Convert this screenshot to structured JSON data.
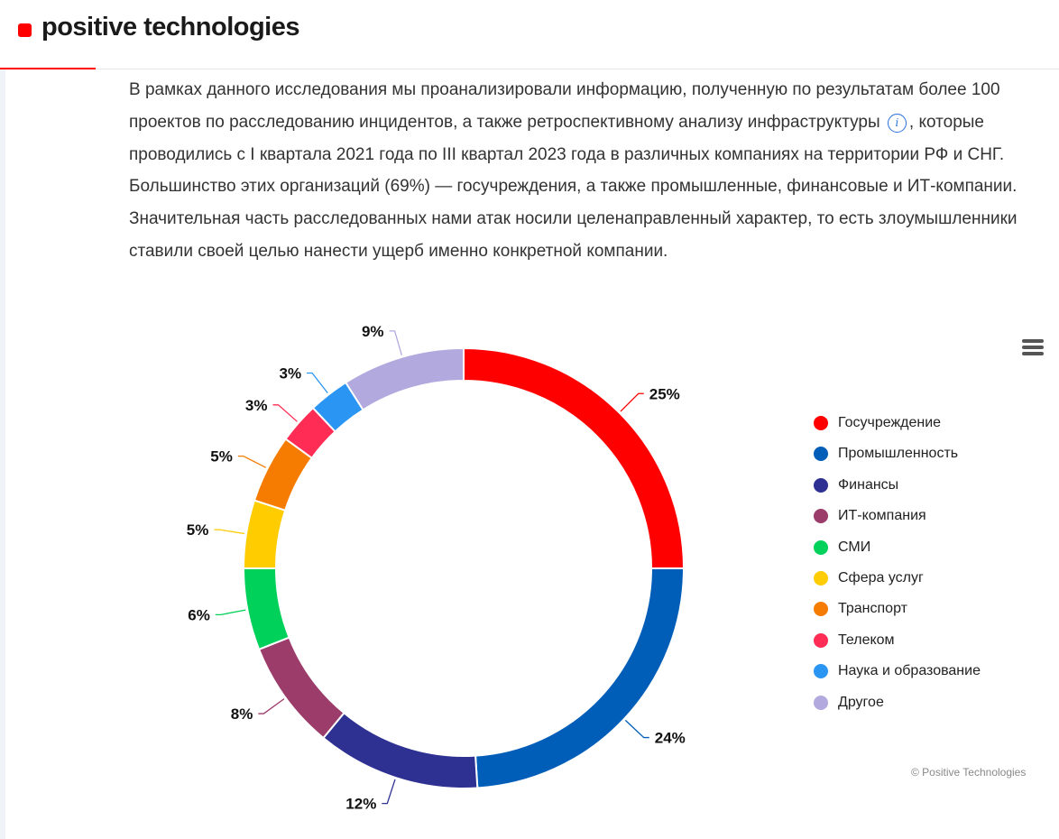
{
  "header": {
    "logo_text": "positive technologies"
  },
  "intro": {
    "part1": "В рамках данного исследования мы проанализировали информацию, полученную по результатам более 100 проектов по расследованию инцидентов, а также ретроспективному анализу инфраструктуры",
    "info_icon_glyph": "i",
    "part2": ", которые проводились с I квартала 2021 года по III квартал 2023 года в различных компаниях на территории РФ и СНГ. Большинство этих организаций (69%) — госучреждения, а также промышленные, финансовые и ИТ-компании. Значительная часть расследованных нами атак носили целенаправленный характер, то есть злоумышленники ставили своей целью нанести ущерб именно конкретной компании."
  },
  "chart_data": {
    "type": "pie",
    "donut": true,
    "title": "",
    "categories": [
      "Госучреждение",
      "Промышленность",
      "Финансы",
      "ИТ-компания",
      "СМИ",
      "Сфера услуг",
      "Транспорт",
      "Телеком",
      "Наука и образование",
      "Другое"
    ],
    "values": [
      25,
      24,
      12,
      8,
      6,
      5,
      5,
      3,
      3,
      9
    ],
    "data_labels": [
      "25%",
      "24%",
      "12%",
      "8%",
      "6%",
      "5%",
      "5%",
      "3%",
      "3%",
      "9%"
    ],
    "colors": [
      "#ff0000",
      "#005eb8",
      "#2e3192",
      "#9b3c6b",
      "#00d15a",
      "#ffcc00",
      "#f57c00",
      "#ff2d55",
      "#2b95f3",
      "#b2a9de"
    ],
    "legend_position": "right",
    "credits": "© Positive Technologies"
  }
}
